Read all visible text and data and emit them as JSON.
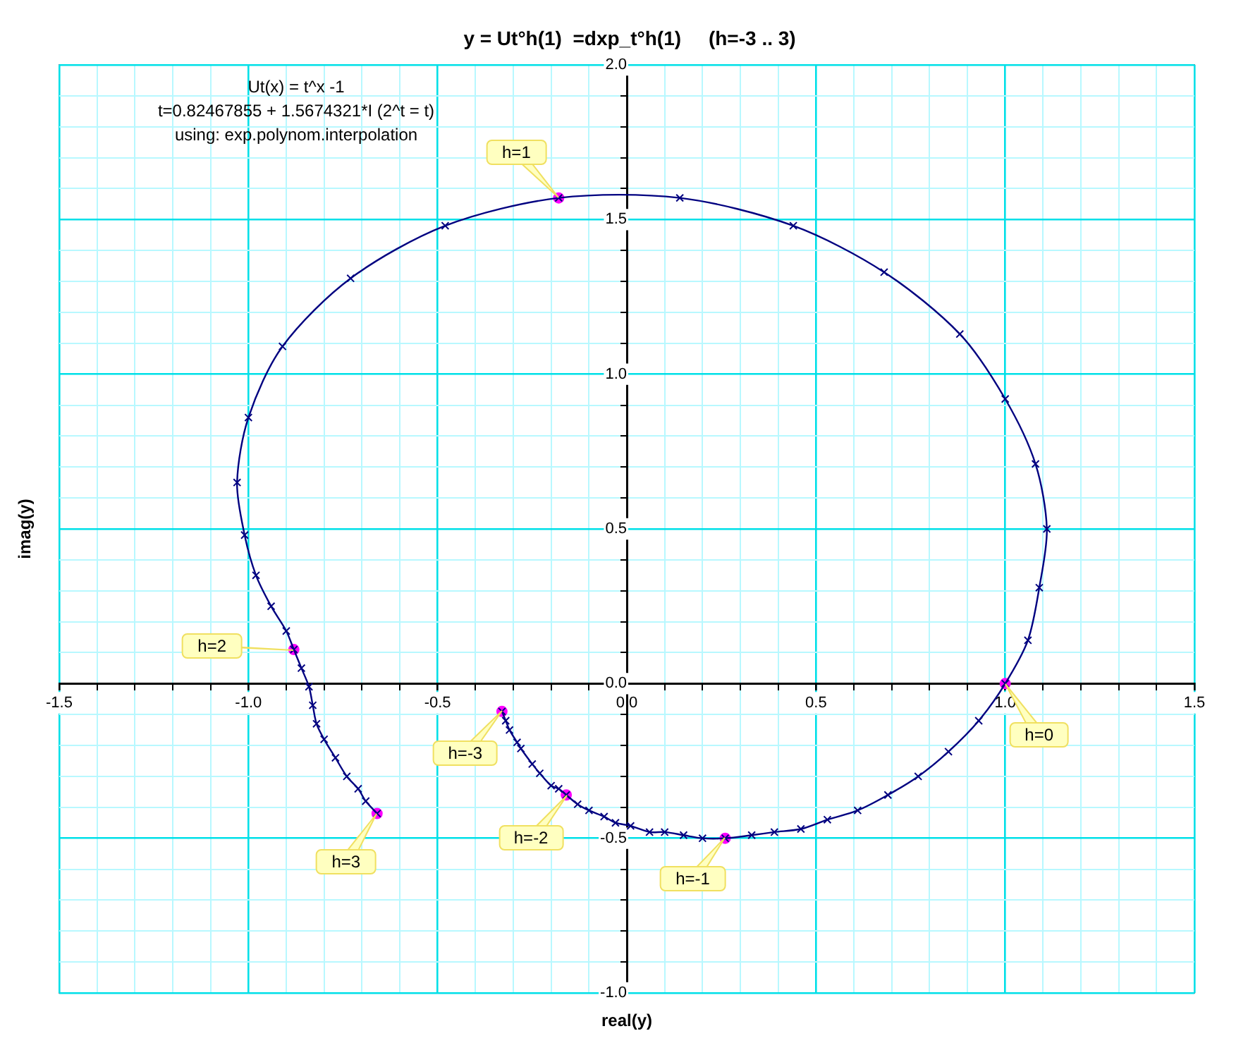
{
  "chart_data": {
    "type": "line",
    "title": "y = Ut°h(1)  =dxp_t°h(1)     (h=-3 .. 3)",
    "xlabel": "real(y)",
    "ylabel": "imag(y)",
    "annotations": [
      "Ut(x) = t^x -1",
      "t=0.82467855 + 1.5674321*I (2^t = t)",
      "using: exp.polynom.interpolation",
      {
        "text": "h=-3",
        "x": -0.33,
        "y": -0.09
      },
      {
        "text": "h=-2",
        "x": -0.16,
        "y": -0.36
      },
      {
        "text": "h=-1",
        "x": 0.26,
        "y": -0.5
      },
      {
        "text": "h=0",
        "x": 1.0,
        "y": 0.0
      },
      {
        "text": "h=1",
        "x": -0.18,
        "y": 1.57
      },
      {
        "text": "h=2",
        "x": -0.88,
        "y": 0.11
      },
      {
        "text": "h=3",
        "x": -0.66,
        "y": -0.42
      }
    ],
    "series": [
      {
        "type": "line",
        "color": "#000080",
        "marker": "cross",
        "x": [
          -0.33,
          -0.32,
          -0.31,
          -0.29,
          -0.28,
          -0.25,
          -0.23,
          -0.2,
          -0.18,
          -0.16,
          -0.13,
          -0.1,
          -0.06,
          -0.03,
          0.01,
          0.06,
          0.1,
          0.15,
          0.2,
          0.26,
          0.33,
          0.39,
          0.46,
          0.53,
          0.61,
          0.69,
          0.77,
          0.85,
          0.93,
          1.0,
          1.06,
          1.09,
          1.11,
          1.08,
          1.0,
          0.88,
          0.68,
          0.44,
          0.14,
          -0.18,
          -0.48,
          -0.73,
          -0.91,
          -1.0,
          -1.03,
          -1.01,
          -0.98,
          -0.94,
          -0.9,
          -0.88,
          -0.86,
          -0.84,
          -0.83,
          -0.82,
          -0.8,
          -0.77,
          -0.74,
          -0.71,
          -0.69,
          -0.66
        ],
        "values": [
          -0.09,
          -0.12,
          -0.15,
          -0.19,
          -0.21,
          -0.26,
          -0.29,
          -0.33,
          -0.34,
          -0.36,
          -0.39,
          -0.41,
          -0.43,
          -0.45,
          -0.46,
          -0.48,
          -0.48,
          -0.49,
          -0.5,
          -0.5,
          -0.49,
          -0.48,
          -0.47,
          -0.44,
          -0.41,
          -0.36,
          -0.3,
          -0.22,
          -0.12,
          0.0,
          0.14,
          0.31,
          0.5,
          0.71,
          0.92,
          1.13,
          1.33,
          1.48,
          1.57,
          1.57,
          1.48,
          1.31,
          1.09,
          0.86,
          0.65,
          0.48,
          0.35,
          0.25,
          0.17,
          0.11,
          0.05,
          -0.01,
          -0.07,
          -0.13,
          -0.18,
          -0.24,
          -0.3,
          -0.34,
          -0.38,
          -0.42
        ]
      },
      {
        "type": "scatter",
        "color": "#ff00ff",
        "marker": "circle",
        "x": [
          -0.33,
          -0.16,
          0.26,
          1.0,
          -0.18,
          -0.88,
          -0.66
        ],
        "values": [
          -0.09,
          -0.36,
          -0.5,
          0.0,
          1.57,
          0.11,
          -0.42
        ]
      }
    ],
    "xlim": [
      -1.5,
      1.5
    ],
    "xticks": [
      {
        "value": -1.5,
        "label": "-1.5"
      },
      {
        "value": -1.4,
        "label": null
      },
      {
        "value": -1.3,
        "label": null
      },
      {
        "value": -1.2,
        "label": null
      },
      {
        "value": -1.1,
        "label": null
      },
      {
        "value": -1.0,
        "label": "-1.0"
      },
      {
        "value": -0.9,
        "label": null
      },
      {
        "value": -0.8,
        "label": null
      },
      {
        "value": -0.7,
        "label": null
      },
      {
        "value": -0.6,
        "label": null
      },
      {
        "value": -0.5,
        "label": "-0.5"
      },
      {
        "value": -0.4,
        "label": null
      },
      {
        "value": -0.3,
        "label": null
      },
      {
        "value": -0.2,
        "label": null
      },
      {
        "value": -0.1,
        "label": null
      },
      {
        "value": 0,
        "label": "0.0"
      },
      {
        "value": 0.1,
        "label": null
      },
      {
        "value": 0.2,
        "label": null
      },
      {
        "value": 0.3,
        "label": null
      },
      {
        "value": 0.4,
        "label": null
      },
      {
        "value": 0.5,
        "label": "0.5"
      },
      {
        "value": 0.6,
        "label": null
      },
      {
        "value": 0.7,
        "label": null
      },
      {
        "value": 0.8,
        "label": null
      },
      {
        "value": 0.9,
        "label": null
      },
      {
        "value": 1.0,
        "label": "1.0"
      },
      {
        "value": 1.1,
        "label": null
      },
      {
        "value": 1.2,
        "label": null
      },
      {
        "value": 1.3,
        "label": null
      },
      {
        "value": 1.4,
        "label": null
      },
      {
        "value": 1.5,
        "label": "1.5"
      }
    ],
    "ylim": [
      -1.0,
      2.0
    ],
    "yticks": [
      {
        "value": -1.0,
        "label": "-1.0"
      },
      {
        "value": -0.9,
        "label": null
      },
      {
        "value": -0.8,
        "label": null
      },
      {
        "value": -0.7,
        "label": null
      },
      {
        "value": -0.6,
        "label": null
      },
      {
        "value": -0.5,
        "label": "-0.5"
      },
      {
        "value": -0.4,
        "label": null
      },
      {
        "value": -0.3,
        "label": null
      },
      {
        "value": -0.2,
        "label": null
      },
      {
        "value": -0.1,
        "label": null
      },
      {
        "value": 0,
        "label": "0.0"
      },
      {
        "value": 0.1,
        "label": null
      },
      {
        "value": 0.2,
        "label": null
      },
      {
        "value": 0.3,
        "label": null
      },
      {
        "value": 0.4,
        "label": null
      },
      {
        "value": 0.5,
        "label": "0.5"
      },
      {
        "value": 0.6,
        "label": null
      },
      {
        "value": 0.7,
        "label": null
      },
      {
        "value": 0.8,
        "label": null
      },
      {
        "value": 0.9,
        "label": null
      },
      {
        "value": 1.0,
        "label": "1.0"
      },
      {
        "value": 1.1,
        "label": null
      },
      {
        "value": 1.2,
        "label": null
      },
      {
        "value": 1.3,
        "label": null
      },
      {
        "value": 1.4,
        "label": null
      },
      {
        "value": 1.5,
        "label": "1.5"
      },
      {
        "value": 1.6,
        "label": null
      },
      {
        "value": 1.7,
        "label": null
      },
      {
        "value": 1.8,
        "label": null
      },
      {
        "value": 1.9,
        "label": null
      },
      {
        "value": 2.0,
        "label": "2.0"
      }
    ],
    "grid": true,
    "legend": false
  }
}
